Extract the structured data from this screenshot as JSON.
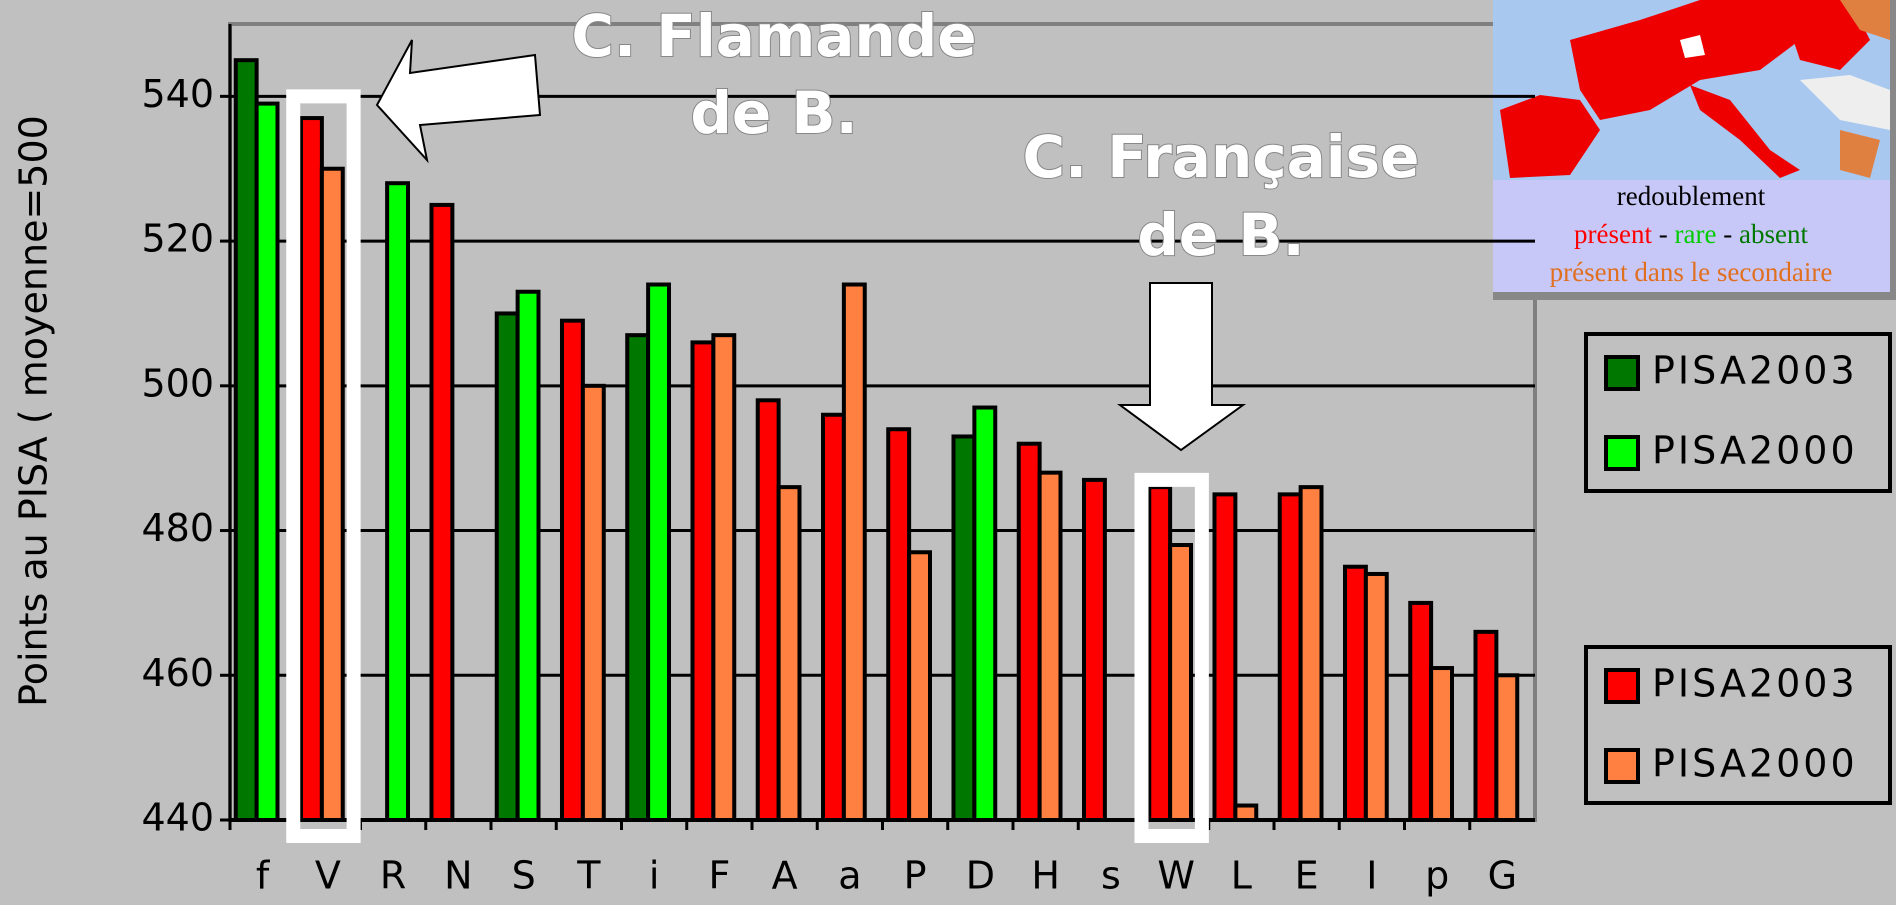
{
  "chart_data": {
    "type": "bar",
    "ylabel": "Points au PISA ( moyenne=500",
    "categories": [
      "f",
      "V",
      "R",
      "N",
      "S",
      "T",
      "i",
      "F",
      "A",
      "a",
      "P",
      "D",
      "H",
      "s",
      "W",
      "L",
      "E",
      "I",
      "p",
      "G"
    ],
    "series": [
      {
        "name": "PISA2003",
        "color": "#007800",
        "values": [
          545,
          null,
          null,
          null,
          510,
          null,
          507,
          null,
          null,
          null,
          null,
          493,
          null,
          null,
          null,
          null,
          null,
          null,
          null,
          null
        ]
      },
      {
        "name": "PISA2000",
        "color": "#00ff00",
        "values": [
          539,
          null,
          528,
          null,
          513,
          null,
          514,
          null,
          null,
          null,
          null,
          497,
          null,
          null,
          null,
          null,
          null,
          null,
          null,
          null
        ]
      },
      {
        "name": "PISA2003",
        "color": "#ff0000",
        "values": [
          null,
          537,
          null,
          525,
          null,
          509,
          null,
          506,
          498,
          496,
          494,
          null,
          492,
          487,
          486,
          485,
          485,
          475,
          470,
          466
        ]
      },
      {
        "name": "PISA2000",
        "color": "#ff8040",
        "values": [
          null,
          530,
          null,
          null,
          null,
          500,
          null,
          507,
          486,
          514,
          477,
          null,
          488,
          null,
          478,
          442,
          486,
          474,
          461,
          460
        ]
      }
    ],
    "ylim": [
      440,
      550
    ],
    "yticks": [
      440,
      460,
      480,
      500,
      520,
      540
    ],
    "grid": true,
    "annotations": [
      "C. Flamande",
      "de B.",
      "C. Française",
      "de B."
    ],
    "map_legend": {
      "title": "redoublement",
      "items": [
        {
          "text": "présent",
          "color": "#ff0000"
        },
        {
          "text": "rare",
          "color": "#00cc00"
        },
        {
          "text": "absent",
          "color": "#007800"
        },
        {
          "text": "présent dans le secondaire",
          "color": "#e07020"
        }
      ],
      "separator": "-"
    }
  }
}
